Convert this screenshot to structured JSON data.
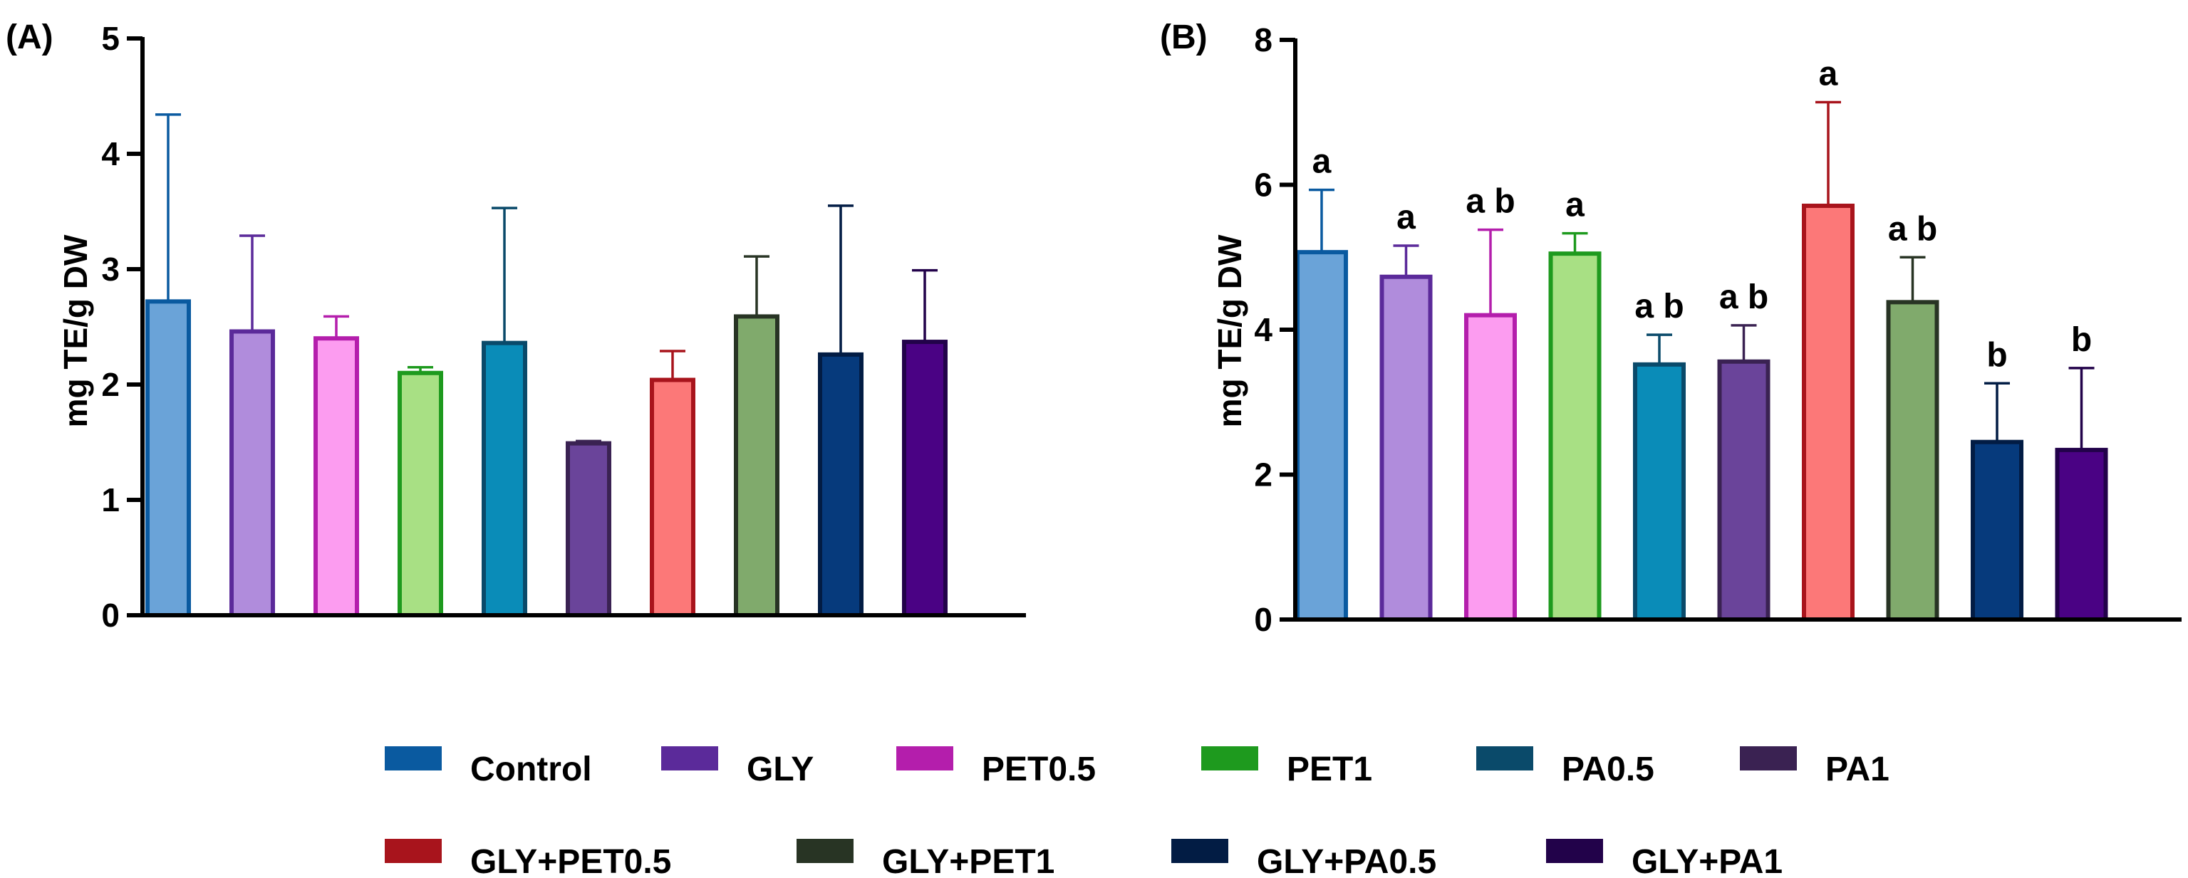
{
  "chart_data": [
    {
      "panel_label": "(A)",
      "type": "bar",
      "ylabel": "mg TE/g DW",
      "ylim": [
        0,
        5
      ],
      "yticks": [
        0,
        1,
        2,
        3,
        4,
        5
      ],
      "categories": [
        "Control",
        "GLY",
        "PET0.5",
        "PET1",
        "PA0.5",
        "PA1",
        "GLY+PET0.5",
        "GLY+PET1",
        "GLY+PA0.5",
        "GLY+PA1"
      ],
      "values": [
        2.72,
        2.46,
        2.4,
        2.1,
        2.36,
        1.49,
        2.04,
        2.59,
        2.26,
        2.37
      ],
      "errors": [
        1.62,
        0.83,
        0.19,
        0.05,
        1.17,
        0.02,
        0.25,
        0.52,
        1.29,
        0.62
      ],
      "significance": []
    },
    {
      "panel_label": "(B)",
      "type": "bar",
      "ylabel": "mg TE/g DW",
      "ylim": [
        0,
        8
      ],
      "yticks": [
        0,
        2,
        4,
        6,
        8
      ],
      "categories": [
        "Control",
        "GLY",
        "PET0.5",
        "PET1",
        "PA0.5",
        "PA1",
        "GLY+PET0.5",
        "GLY+PET1",
        "GLY+PA0.5",
        "GLY+PA1"
      ],
      "values": [
        5.07,
        4.73,
        4.2,
        5.05,
        3.52,
        3.56,
        5.71,
        4.38,
        2.45,
        2.34
      ],
      "errors": [
        0.86,
        0.43,
        1.18,
        0.28,
        0.41,
        0.5,
        1.43,
        0.62,
        0.81,
        1.13
      ],
      "significance": [
        "a",
        "a",
        "a b",
        "a",
        "a b",
        "a b",
        "a",
        "a b",
        "b",
        "b"
      ]
    }
  ],
  "series_style": [
    {
      "name": "Control",
      "fill": "#6aa3d8",
      "stroke": "#0a5aa0"
    },
    {
      "name": "GLY",
      "fill": "#b08cdc",
      "stroke": "#5b2a9a"
    },
    {
      "name": "PET0.5",
      "fill": "#fc9cf0",
      "stroke": "#b41eac"
    },
    {
      "name": "PET1",
      "fill": "#a8e084",
      "stroke": "#1e9a1e"
    },
    {
      "name": "PA0.5",
      "fill": "#0a8cb8",
      "stroke": "#0a4a6a"
    },
    {
      "name": "PA1",
      "fill": "#6a449a",
      "stroke": "#3a2252"
    },
    {
      "name": "GLY+PET0.5",
      "fill": "#fc7878",
      "stroke": "#a8141c"
    },
    {
      "name": "GLY+PET1",
      "fill": "#80aa6c",
      "stroke": "#283424"
    },
    {
      "name": "GLY+PA0.5",
      "fill": "#063a7c",
      "stroke": "#021c44"
    },
    {
      "name": "GLY+PA1",
      "fill": "#4a0284",
      "stroke": "#22024a"
    }
  ],
  "legend": [
    {
      "label": "Control",
      "color": "#0a5aa0"
    },
    {
      "label": "GLY",
      "color": "#5b2a9a"
    },
    {
      "label": "PET0.5",
      "color": "#b41eac"
    },
    {
      "label": "PET1",
      "color": "#1e9a1e"
    },
    {
      "label": "PA0.5",
      "color": "#0a4a6a"
    },
    {
      "label": "PA1",
      "color": "#3a2252"
    },
    {
      "label": "GLY+PET0.5",
      "color": "#a8141c"
    },
    {
      "label": "GLY+PET1",
      "color": "#283424"
    },
    {
      "label": "GLY+PA0.5",
      "color": "#021c44"
    },
    {
      "label": "GLY+PA1",
      "color": "#22024a"
    }
  ]
}
